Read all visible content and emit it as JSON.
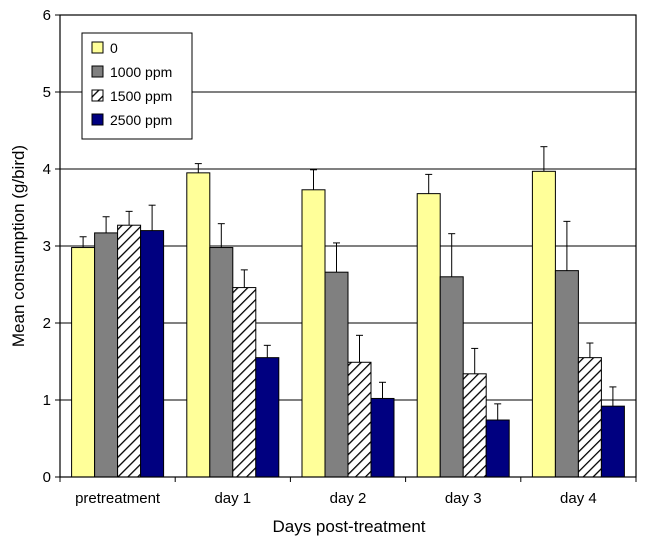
{
  "chart_data": {
    "type": "bar",
    "title": "",
    "xlabel": "Days post-treatment",
    "ylabel": "Mean consumption (g/bird)",
    "ylim": [
      0,
      6
    ],
    "yticks": [
      "0",
      "1",
      "2",
      "3",
      "4",
      "5",
      "6"
    ],
    "grid": "horizontal",
    "legend_position": "top-left",
    "categories": [
      "pretreatment",
      "day 1",
      "day 2",
      "day 3",
      "day 4"
    ],
    "series": [
      {
        "name": "0",
        "color": "#ffff99",
        "pattern": "solid",
        "values": [
          2.98,
          3.95,
          3.73,
          3.68,
          3.97
        ],
        "errors": [
          0.14,
          0.12,
          0.26,
          0.25,
          0.32
        ]
      },
      {
        "name": "1000 ppm",
        "color": "#808080",
        "pattern": "solid",
        "values": [
          3.17,
          2.98,
          2.66,
          2.6,
          2.68
        ],
        "errors": [
          0.21,
          0.31,
          0.38,
          0.56,
          0.64
        ]
      },
      {
        "name": "1500 ppm",
        "color": "#ffffff",
        "pattern": "diagonal-hatch",
        "values": [
          3.27,
          2.46,
          1.49,
          1.34,
          1.55
        ],
        "errors": [
          0.18,
          0.23,
          0.35,
          0.33,
          0.19
        ]
      },
      {
        "name": "2500 ppm",
        "color": "#000080",
        "pattern": "solid",
        "values": [
          3.2,
          1.55,
          1.02,
          0.74,
          0.92
        ],
        "errors": [
          0.33,
          0.16,
          0.21,
          0.21,
          0.25
        ]
      }
    ]
  }
}
